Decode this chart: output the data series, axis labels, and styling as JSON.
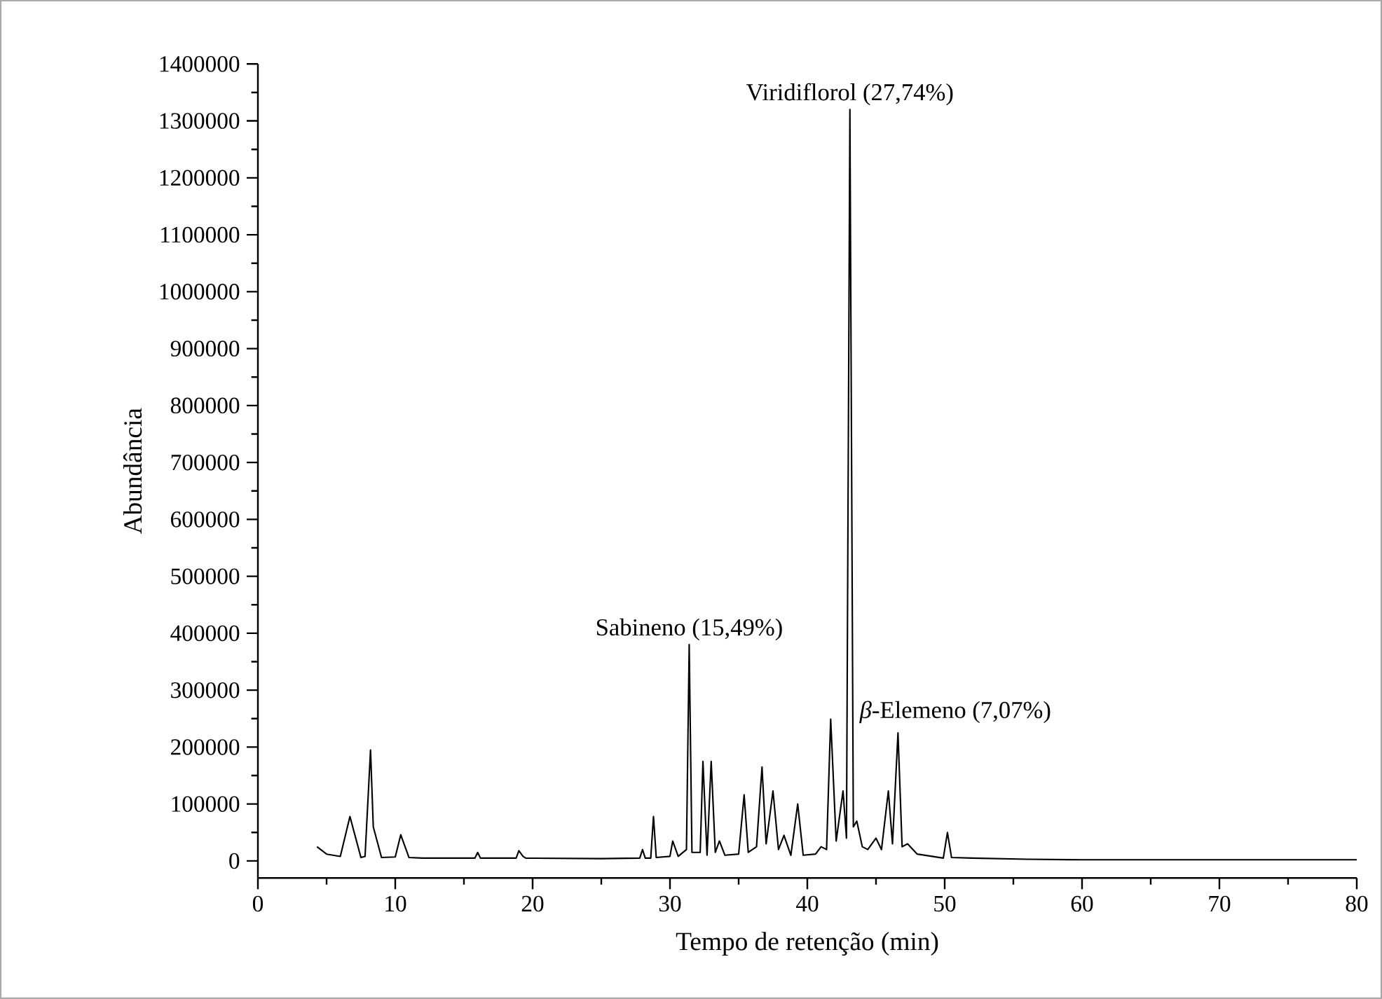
{
  "chart_data": {
    "type": "line",
    "xlabel": "Tempo de retenção (min)",
    "ylabel": "Abundância",
    "annotations": [
      {
        "text": "Viridiflorol (27,74%)",
        "x": 43.1,
        "y": 1320000
      },
      {
        "text": "Sabineno (15,49%)",
        "x": 31.4,
        "y": 380000
      },
      {
        "text": "*β*-Elemeno (7,07%)",
        "x": 46.6,
        "y": 225000
      }
    ],
    "series": [
      {
        "color": "#000000",
        "x": [
          4.3,
          5.0,
          6.0,
          6.7,
          7.5,
          7.8,
          8.2,
          8.4,
          9.0,
          10.0,
          10.4,
          11.0,
          12.0,
          15.8,
          16.0,
          16.2,
          18.8,
          19.0,
          19.3,
          19.5,
          25.0,
          27.8,
          28.0,
          28.2,
          28.6,
          28.8,
          29.0,
          30.0,
          30.2,
          30.6,
          31.2,
          31.4,
          31.6,
          32.2,
          32.4,
          32.7,
          33.0,
          33.3,
          33.6,
          34.0,
          35.0,
          35.4,
          35.7,
          36.3,
          36.7,
          37.0,
          37.5,
          37.9,
          38.3,
          38.8,
          39.3,
          39.7,
          40.6,
          41.0,
          41.4,
          41.7,
          42.1,
          42.6,
          42.85,
          43.1,
          43.35,
          43.6,
          44.0,
          44.4,
          45.0,
          45.4,
          45.9,
          46.2,
          46.6,
          46.9,
          47.3,
          48.0,
          49.9,
          50.2,
          50.5,
          52.0,
          56.0,
          60.0,
          80.0
        ],
        "values": [
          25000,
          12000,
          8000,
          78000,
          6000,
          8000,
          195000,
          60000,
          6000,
          7000,
          46000,
          6000,
          5000,
          5000,
          15000,
          5000,
          5000,
          18000,
          8000,
          5000,
          4000,
          5000,
          20000,
          5000,
          5000,
          78000,
          6000,
          8000,
          35000,
          8000,
          20000,
          380000,
          15000,
          15000,
          175000,
          10000,
          175000,
          15000,
          35000,
          10000,
          12000,
          116000,
          15000,
          25000,
          165000,
          30000,
          123000,
          20000,
          45000,
          10000,
          100000,
          10000,
          12000,
          25000,
          20000,
          249000,
          35000,
          123000,
          40000,
          1320000,
          60000,
          70000,
          25000,
          20000,
          40000,
          20000,
          123000,
          30000,
          225000,
          25000,
          30000,
          12000,
          5000,
          50000,
          6000,
          5000,
          3000,
          2000,
          2000
        ]
      }
    ],
    "xlim": [
      0,
      80
    ],
    "ylim": [
      -30000,
      1400000
    ],
    "xticks": [
      0,
      10,
      20,
      30,
      40,
      50,
      60,
      70,
      80
    ],
    "yticks": [
      0,
      100000,
      200000,
      300000,
      400000,
      500000,
      600000,
      700000,
      800000,
      900000,
      1000000,
      1100000,
      1200000,
      1300000,
      1400000
    ],
    "grid": false,
    "marker": "none",
    "line_style": "solid"
  }
}
